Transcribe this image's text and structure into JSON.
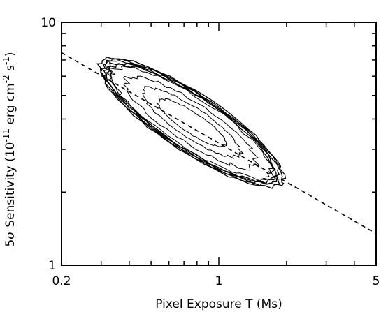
{
  "chart_data": {
    "type": "contour",
    "title": "",
    "xlabel": "Pixel Exposure T (Ms)",
    "ylabel": {
      "prefix": "5",
      "sigma": "σ",
      "text": " Sensitivity (10",
      "exp1": "-11",
      "mid": " erg cm",
      "exp2": "-2",
      "mid2": " s",
      "exp3": "-1",
      "suffix": ")"
    },
    "x_scale": "log",
    "y_scale": "log",
    "xlim": [
      0.2,
      5
    ],
    "ylim": [
      1,
      10
    ],
    "x_ticks": [
      {
        "value": 0.2,
        "label": "0.2"
      },
      {
        "value": 1,
        "label": "1"
      },
      {
        "value": 5,
        "label": "5"
      }
    ],
    "y_ticks": [
      {
        "value": 1,
        "label": "1"
      },
      {
        "value": 10,
        "label": "10"
      }
    ],
    "grid": false,
    "reference_line": {
      "style": "dashed",
      "points": [
        [
          0.2,
          7.5
        ],
        [
          5,
          1.35
        ]
      ]
    },
    "contours": {
      "center_x": 1.0,
      "center_y": 3.7,
      "major_axis_from": [
        0.3,
        6.8
      ],
      "major_axis_to": [
        1.9,
        2.2
      ],
      "level_count": 9,
      "color": "#000000"
    }
  }
}
